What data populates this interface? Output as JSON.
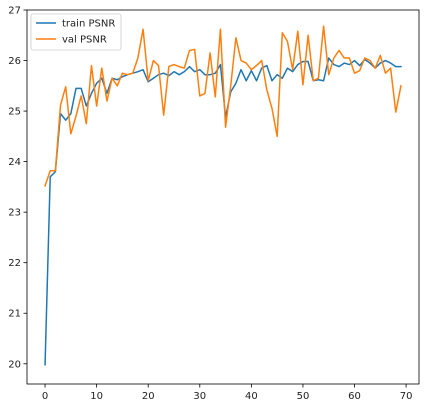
{
  "chart_data": {
    "type": "line",
    "title": "",
    "xlabel": "",
    "ylabel": "",
    "xlim": [
      -3.5,
      72.5
    ],
    "ylim": [
      19.6,
      27.0
    ],
    "xticks": [
      0,
      10,
      20,
      30,
      40,
      50,
      60,
      70
    ],
    "xtick_labels": [
      "0",
      "10",
      "20",
      "30",
      "40",
      "50",
      "60",
      "70"
    ],
    "yticks": [
      20,
      21,
      22,
      23,
      24,
      25,
      26,
      27
    ],
    "ytick_labels": [
      "20",
      "21",
      "22",
      "23",
      "24",
      "25",
      "26",
      "27"
    ],
    "grid": false,
    "legend": "top-left",
    "x": [
      0,
      1,
      2,
      3,
      4,
      5,
      6,
      7,
      8,
      9,
      10,
      11,
      12,
      13,
      14,
      15,
      16,
      17,
      18,
      19,
      20,
      21,
      22,
      23,
      24,
      25,
      26,
      27,
      28,
      29,
      30,
      31,
      32,
      33,
      34,
      35,
      36,
      37,
      38,
      39,
      40,
      41,
      42,
      43,
      44,
      45,
      46,
      47,
      48,
      49,
      50,
      51,
      52,
      53,
      54,
      55,
      56,
      57,
      58,
      59,
      60,
      61,
      62,
      63,
      64,
      65,
      66,
      67,
      68,
      69
    ],
    "series": [
      {
        "name": "train PSNR",
        "color": "#1f77b4",
        "values": [
          19.98,
          23.7,
          23.8,
          24.95,
          24.82,
          24.95,
          25.45,
          25.45,
          25.1,
          25.35,
          25.55,
          25.65,
          25.35,
          25.65,
          25.62,
          25.68,
          25.72,
          25.75,
          25.78,
          25.82,
          25.58,
          25.65,
          25.72,
          25.75,
          25.7,
          25.78,
          25.72,
          25.78,
          25.88,
          25.78,
          25.82,
          25.72,
          25.72,
          25.75,
          25.92,
          24.88,
          25.38,
          25.55,
          25.82,
          25.6,
          25.8,
          25.6,
          25.85,
          25.9,
          25.6,
          25.72,
          25.65,
          25.85,
          25.78,
          25.92,
          25.98,
          25.98,
          25.6,
          25.62,
          25.6,
          26.05,
          25.92,
          25.88,
          25.95,
          25.92,
          26.0,
          25.9,
          26.02,
          25.95,
          25.85,
          25.95,
          26.0,
          25.95,
          25.88,
          25.88
        ]
      },
      {
        "name": "val PSNR",
        "color": "#ff7f0e",
        "values": [
          23.52,
          23.82,
          23.82,
          25.12,
          25.48,
          24.55,
          24.9,
          25.3,
          24.75,
          25.9,
          25.1,
          25.85,
          25.2,
          25.65,
          25.5,
          25.75,
          25.72,
          25.75,
          26.05,
          26.62,
          25.6,
          26.0,
          25.9,
          24.92,
          25.88,
          25.92,
          25.88,
          25.85,
          26.2,
          26.22,
          25.3,
          25.35,
          26.15,
          25.28,
          26.62,
          24.68,
          25.5,
          26.45,
          26.0,
          25.95,
          25.82,
          25.9,
          26.0,
          25.42,
          25.05,
          24.5,
          26.55,
          26.38,
          25.82,
          26.58,
          25.52,
          26.5,
          25.6,
          25.65,
          26.68,
          25.72,
          26.05,
          26.2,
          26.05,
          26.05,
          25.75,
          25.8,
          26.05,
          26.0,
          25.85,
          26.1,
          25.75,
          25.85,
          24.98,
          25.5
        ]
      }
    ]
  }
}
